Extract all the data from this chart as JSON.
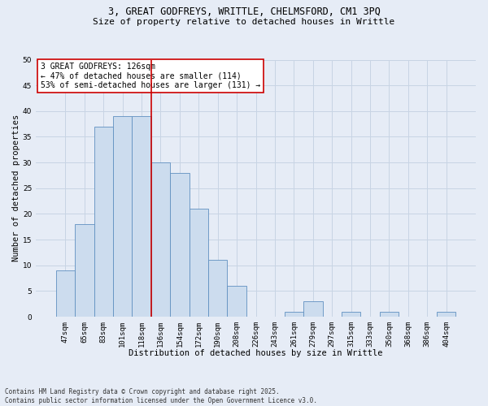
{
  "title_line1": "3, GREAT GODFREYS, WRITTLE, CHELMSFORD, CM1 3PQ",
  "title_line2": "Size of property relative to detached houses in Writtle",
  "xlabel": "Distribution of detached houses by size in Writtle",
  "ylabel": "Number of detached properties",
  "categories": [
    "47sqm",
    "65sqm",
    "83sqm",
    "101sqm",
    "118sqm",
    "136sqm",
    "154sqm",
    "172sqm",
    "190sqm",
    "208sqm",
    "226sqm",
    "243sqm",
    "261sqm",
    "279sqm",
    "297sqm",
    "315sqm",
    "333sqm",
    "350sqm",
    "368sqm",
    "386sqm",
    "404sqm"
  ],
  "values": [
    9,
    18,
    37,
    39,
    39,
    30,
    28,
    21,
    11,
    6,
    0,
    0,
    1,
    3,
    0,
    1,
    0,
    1,
    0,
    0,
    1
  ],
  "bar_color": "#ccdcee",
  "bar_edge_color": "#6090c0",
  "vline_x": 4.5,
  "vline_color": "#cc0000",
  "annotation_text": "3 GREAT GODFREYS: 126sqm\n← 47% of detached houses are smaller (114)\n53% of semi-detached houses are larger (131) →",
  "annotation_box_facecolor": "#ffffff",
  "annotation_box_edgecolor": "#cc0000",
  "ylim": [
    0,
    50
  ],
  "yticks": [
    0,
    5,
    10,
    15,
    20,
    25,
    30,
    35,
    40,
    45,
    50
  ],
  "grid_color": "#c8d4e4",
  "bg_color": "#e6ecf6",
  "footer": "Contains HM Land Registry data © Crown copyright and database right 2025.\nContains public sector information licensed under the Open Government Licence v3.0.",
  "title_fontsize": 8.5,
  "subtitle_fontsize": 8.0,
  "tick_fontsize": 6.5,
  "xlabel_fontsize": 7.5,
  "ylabel_fontsize": 7.5,
  "annotation_fontsize": 7.0,
  "footer_fontsize": 5.5
}
